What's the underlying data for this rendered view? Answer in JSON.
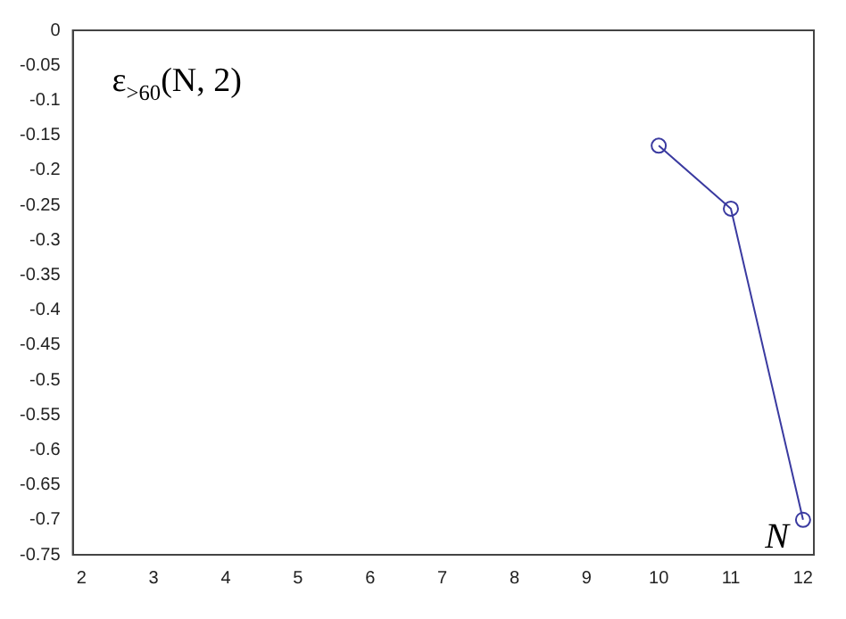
{
  "chart_data": {
    "type": "line",
    "xlabel": "N",
    "annotations": [
      "ε$_{>60}$(N, 2)"
    ],
    "x": [
      10,
      11,
      12
    ],
    "series": [
      {
        "color": "#3a3aa0",
        "values": [
          -0.165,
          -0.255,
          -0.7
        ]
      }
    ],
    "xlim": [
      1.88,
      12.15
    ],
    "xticks": [
      2,
      3,
      4,
      5,
      6,
      7,
      8,
      9,
      10,
      11,
      12
    ],
    "ylim": [
      -0.75,
      0
    ],
    "yticks": [
      0,
      -0.05,
      -0.1,
      -0.15,
      -0.2,
      -0.25,
      -0.3,
      -0.35,
      -0.4,
      -0.45,
      -0.5,
      -0.55,
      -0.6,
      -0.65,
      -0.7,
      -0.75
    ],
    "grid": false,
    "legend": false,
    "marker": "circle",
    "line_style": "solid"
  }
}
